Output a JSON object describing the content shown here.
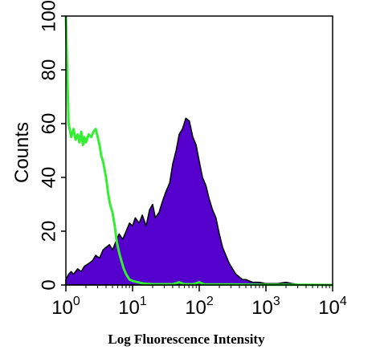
{
  "chart_data": {
    "type": "area",
    "title": "",
    "xlabel": "Log Fluorescence Intensity",
    "ylabel": "Counts",
    "xscale": "log",
    "xlim": [
      1,
      10000
    ],
    "ylim": [
      0,
      100
    ],
    "yticks": [
      "0",
      "20",
      "40",
      "60",
      "80",
      "100"
    ],
    "xticks": [
      {
        "base": "10",
        "exp": "0"
      },
      {
        "base": "10",
        "exp": "1"
      },
      {
        "base": "10",
        "exp": "2"
      },
      {
        "base": "10",
        "exp": "3"
      },
      {
        "base": "10",
        "exp": "4"
      }
    ],
    "grid": false,
    "legend": "none",
    "series": [
      {
        "style": "filled",
        "color": "#5500cc",
        "points": [
          [
            1.0,
            2
          ],
          [
            1.1,
            4
          ],
          [
            1.2,
            5
          ],
          [
            1.3,
            4
          ],
          [
            1.5,
            6
          ],
          [
            1.7,
            5
          ],
          [
            1.9,
            7
          ],
          [
            2.2,
            8
          ],
          [
            2.5,
            9
          ],
          [
            2.8,
            11
          ],
          [
            3.2,
            10
          ],
          [
            3.6,
            13
          ],
          [
            4.0,
            14
          ],
          [
            4.5,
            15
          ],
          [
            5.0,
            13
          ],
          [
            5.6,
            16
          ],
          [
            6.3,
            19
          ],
          [
            7.1,
            17
          ],
          [
            8.0,
            20
          ],
          [
            9.0,
            23
          ],
          [
            10,
            22
          ],
          [
            11,
            25
          ],
          [
            12.6,
            23
          ],
          [
            14,
            26
          ],
          [
            16,
            22
          ],
          [
            18,
            28
          ],
          [
            20,
            30
          ],
          [
            22,
            25
          ],
          [
            25,
            27
          ],
          [
            28,
            31
          ],
          [
            32,
            35
          ],
          [
            36,
            38
          ],
          [
            40,
            45
          ],
          [
            45,
            50
          ],
          [
            50,
            56
          ],
          [
            56,
            58
          ],
          [
            63,
            62
          ],
          [
            71,
            61
          ],
          [
            80,
            55
          ],
          [
            90,
            52
          ],
          [
            100,
            46
          ],
          [
            112,
            40
          ],
          [
            126,
            37
          ],
          [
            141,
            32
          ],
          [
            158,
            28
          ],
          [
            178,
            25
          ],
          [
            200,
            19
          ],
          [
            224,
            14
          ],
          [
            251,
            11
          ],
          [
            282,
            8
          ],
          [
            316,
            6
          ],
          [
            355,
            4
          ],
          [
            398,
            3
          ],
          [
            447,
            2
          ],
          [
            501,
            2
          ],
          [
            562,
            1.5
          ],
          [
            631,
            1
          ],
          [
            708,
            1
          ],
          [
            800,
            1
          ],
          [
            1000,
            0.5
          ],
          [
            1500,
            0.5
          ],
          [
            2000,
            1
          ],
          [
            2500,
            0.5
          ],
          [
            3000,
            0.2
          ],
          [
            5000,
            0.1
          ],
          [
            10000,
            0
          ]
        ]
      },
      {
        "style": "line",
        "color": "#33ee33",
        "points": [
          [
            1.0,
            100
          ],
          [
            1.05,
            78
          ],
          [
            1.1,
            60
          ],
          [
            1.2,
            55
          ],
          [
            1.3,
            58
          ],
          [
            1.4,
            54
          ],
          [
            1.5,
            56
          ],
          [
            1.6,
            53
          ],
          [
            1.7,
            57
          ],
          [
            1.8,
            52
          ],
          [
            1.9,
            55
          ],
          [
            2.0,
            53
          ],
          [
            2.2,
            56
          ],
          [
            2.4,
            55
          ],
          [
            2.6,
            57
          ],
          [
            2.8,
            58
          ],
          [
            3.0,
            55
          ],
          [
            3.2,
            52
          ],
          [
            3.4,
            48
          ],
          [
            3.6,
            46
          ],
          [
            3.8,
            43
          ],
          [
            4.0,
            40
          ],
          [
            4.3,
            34
          ],
          [
            4.6,
            30
          ],
          [
            5.0,
            27
          ],
          [
            5.4,
            22
          ],
          [
            5.8,
            16
          ],
          [
            6.3,
            12
          ],
          [
            6.8,
            9
          ],
          [
            7.4,
            6
          ],
          [
            8.0,
            4
          ],
          [
            9.0,
            2
          ],
          [
            10,
            1.5
          ],
          [
            12,
            1
          ],
          [
            15,
            0.5
          ],
          [
            20,
            0.3
          ],
          [
            40,
            0.3
          ],
          [
            50,
            1
          ],
          [
            60,
            0.3
          ],
          [
            80,
            0.3
          ],
          [
            100,
            1
          ],
          [
            120,
            0.2
          ],
          [
            300,
            0.2
          ],
          [
            1000,
            0.1
          ],
          [
            3000,
            0.1
          ],
          [
            10000,
            0
          ]
        ]
      }
    ]
  }
}
